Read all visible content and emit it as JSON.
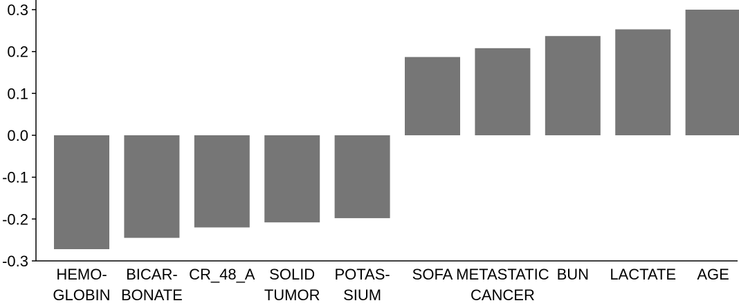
{
  "chart_data": {
    "type": "bar",
    "title": "",
    "xlabel": "",
    "ylabel": "",
    "categories": [
      [
        "HEMO-",
        "GLOBIN"
      ],
      [
        "BICAR-",
        "BONATE"
      ],
      [
        "CR_48_A"
      ],
      [
        "SOLID",
        "TUMOR"
      ],
      [
        "POTAS-",
        "SIUM"
      ],
      [
        "SOFA"
      ],
      [
        "METASTATIC",
        "CANCER"
      ],
      [
        "BUN"
      ],
      [
        "LACTATE"
      ],
      [
        "AGE"
      ]
    ],
    "values": [
      -0.272,
      -0.245,
      -0.22,
      -0.208,
      -0.198,
      0.187,
      0.208,
      0.237,
      0.253,
      0.3
    ],
    "ylim": [
      -0.3,
      0.3
    ],
    "yticks": [
      "-0.3",
      "-0.2",
      "-0.1",
      "0.0",
      "0.1",
      "0.2",
      "0.3"
    ],
    "bar_color": "#767676",
    "axis_color": "#000000",
    "grid": false,
    "legend": "none"
  }
}
